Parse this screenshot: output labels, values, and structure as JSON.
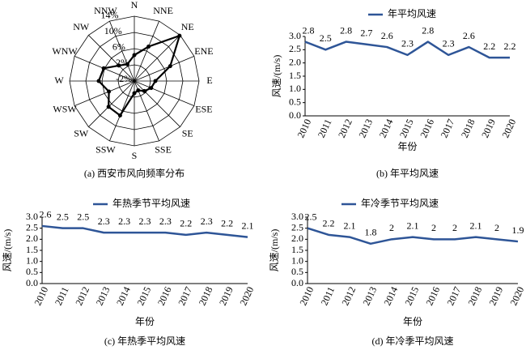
{
  "chart_data": [
    {
      "type": "radar",
      "caption": "(a) 西安市风向频率分布",
      "categories": [
        "N",
        "NNE",
        "NE",
        "ENE",
        "E",
        "ESE",
        "SE",
        "SSE",
        "S",
        "SSW",
        "SW",
        "WSW",
        "W",
        "WNW",
        "NW",
        "NNW"
      ],
      "values": [
        4.4,
        7.2,
        13.8,
        7.6,
        3.2,
        2.5,
        1.5,
        0.5,
        1,
        7.2,
        7,
        4.8,
        6.8,
        6.2,
        3.4,
        2.5
      ],
      "color": "#000000",
      "rlim": [
        -2,
        14
      ],
      "rticks": [
        {
          "value": -2,
          "label": "-2%"
        },
        {
          "value": 2,
          "label": "2%"
        },
        {
          "value": 6,
          "label": "6%"
        },
        {
          "value": 10,
          "label": "10%"
        },
        {
          "value": 14,
          "label": "14%"
        }
      ]
    },
    {
      "type": "line",
      "caption": "(b) 年平均风速",
      "x_label": "年份",
      "y_label": "风速/(m/s)",
      "categories": [
        "2010",
        "2011",
        "2012",
        "2013",
        "2014",
        "2015",
        "2016",
        "2017",
        "2018",
        "2019",
        "2020"
      ],
      "series": [
        {
          "name": "年平均风速",
          "color": "#2e5597",
          "values": [
            2.8,
            2.5,
            2.8,
            2.7,
            2.6,
            2.3,
            2.8,
            2.3,
            2.6,
            2.2,
            2.2
          ]
        }
      ],
      "ylim": [
        0,
        3
      ],
      "yticks": [
        {
          "value": 0,
          "label": "0.0"
        },
        {
          "value": 0.5,
          "label": "0.5"
        },
        {
          "value": 1,
          "label": "1.0"
        },
        {
          "value": 1.5,
          "label": "1.5"
        },
        {
          "value": 2,
          "label": "2.0"
        },
        {
          "value": 2.5,
          "label": "2.5"
        },
        {
          "value": 3,
          "label": "3.0"
        }
      ]
    },
    {
      "type": "line",
      "caption": "(c) 年热季平均风速",
      "x_label": "年份",
      "y_label": "风速/(m/s)",
      "categories": [
        "2010",
        "2011",
        "2012",
        "2013",
        "2014",
        "2015",
        "2016",
        "2017",
        "2018",
        "2019",
        "2020"
      ],
      "series": [
        {
          "name": "年热季节平均风速",
          "color": "#2e5597",
          "values": [
            2.6,
            2.5,
            2.5,
            2.3,
            2.3,
            2.3,
            2.3,
            2.2,
            2.3,
            2.2,
            2.1
          ]
        }
      ],
      "ylim": [
        0,
        3
      ],
      "yticks": [
        {
          "value": 0,
          "label": "0.0"
        },
        {
          "value": 0.5,
          "label": "0.5"
        },
        {
          "value": 1,
          "label": "1.0"
        },
        {
          "value": 1.5,
          "label": "1.5"
        },
        {
          "value": 2,
          "label": "2.0"
        },
        {
          "value": 2.5,
          "label": "2.5"
        },
        {
          "value": 3,
          "label": "3.0"
        }
      ]
    },
    {
      "type": "line",
      "caption": "(d) 年冷季平均风速",
      "x_label": "年份",
      "y_label": "风速/(m/s)",
      "categories": [
        "2010",
        "2011",
        "2012",
        "2013",
        "2014",
        "2015",
        "2016",
        "2017",
        "2018",
        "2019",
        "2020"
      ],
      "series": [
        {
          "name": "年冷季节平均风速",
          "color": "#2e5597",
          "values": [
            2.5,
            2.2,
            2.1,
            1.8,
            2.0,
            2.1,
            2.0,
            2.0,
            2.1,
            2.0,
            1.9
          ]
        }
      ],
      "ylim": [
        0,
        3
      ],
      "yticks": [
        {
          "value": 0,
          "label": "0.0"
        },
        {
          "value": 0.5,
          "label": "0.5"
        },
        {
          "value": 1,
          "label": "1.0"
        },
        {
          "value": 1.5,
          "label": "1.5"
        },
        {
          "value": 2,
          "label": "2.0"
        },
        {
          "value": 2.5,
          "label": "2.5"
        },
        {
          "value": 3,
          "label": "3.0"
        }
      ]
    }
  ]
}
